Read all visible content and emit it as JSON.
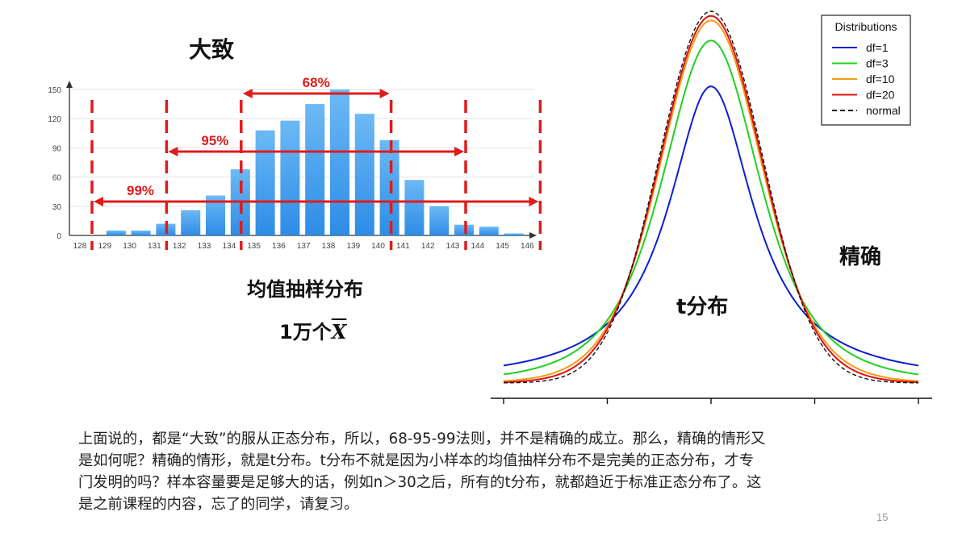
{
  "slide": {
    "rough_title": "大致",
    "precise_title": "精确",
    "hist_caption": "均值抽样分布",
    "hist_count_prefix": "1万个",
    "hist_count_symbol": "X",
    "t_label": "t分布",
    "page_number": "15",
    "body_lines": [
      "上面说的，都是“大致”的服从正态分布，所以，68-95-99法则，并不是精确的成立。那么，精确的情形又",
      "是如何呢？精确的情形，就是t分布。t分布不就是因为小样本的均值抽样分布不是完美的正态分布，才专",
      "门发明的吗？样本容量要是足够大的话，例如n＞30之后，所有的t分布，就都趋近于标准正态分布了。这",
      "是之前课程的内容，忘了的同学，请复习。"
    ]
  },
  "chart_data": [
    {
      "type": "bar",
      "categories": [
        "128",
        "129",
        "130",
        "131",
        "132",
        "133",
        "134",
        "135",
        "136",
        "137",
        "138",
        "139",
        "140",
        "141",
        "142",
        "143",
        "144",
        "145",
        "146"
      ],
      "values": [
        0,
        5,
        5,
        12,
        26,
        41,
        68,
        108,
        118,
        135,
        150,
        125,
        98,
        57,
        30,
        11,
        9,
        2,
        0
      ],
      "ylim": [
        0,
        150
      ],
      "yticks": [
        0,
        30,
        60,
        90,
        120,
        150
      ],
      "bar_color": "#2e8ce6",
      "ranges": [
        {
          "label": "68%",
          "from": "134",
          "to": "140"
        },
        {
          "label": "95%",
          "from": "131",
          "to": "143"
        },
        {
          "label": "99%",
          "from": "128",
          "to": "146"
        }
      ],
      "range_color": "#e01b1b"
    },
    {
      "type": "line",
      "legend_title": "Distributions",
      "legend_position": "top-right",
      "xlim": [
        -4,
        4
      ],
      "series": [
        {
          "name": "df=1",
          "df": 1,
          "color": "#0a1fd1",
          "dash": "solid"
        },
        {
          "name": "df=3",
          "df": 3,
          "color": "#1fd11f",
          "dash": "solid"
        },
        {
          "name": "df=10",
          "df": 10,
          "color": "#f39c12",
          "dash": "solid"
        },
        {
          "name": "df=20",
          "df": 20,
          "color": "#e01010",
          "dash": "solid"
        },
        {
          "name": "normal",
          "df": null,
          "color": "#111111",
          "dash": "dashed"
        }
      ]
    }
  ]
}
